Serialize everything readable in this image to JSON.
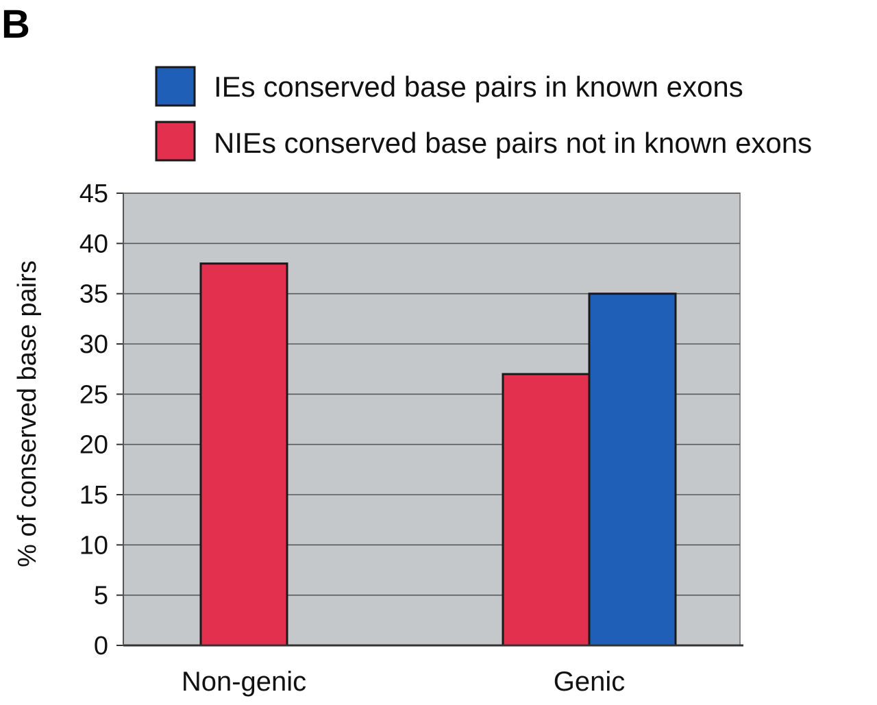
{
  "panel_label": "B",
  "colors": {
    "ies": "#1f5fb8",
    "nies": "#e3304e",
    "plot_background": "#c4c8ca",
    "gridline": "#5a5a5a"
  },
  "legend": {
    "position": "top",
    "items": [
      {
        "label": "IEs conserved base pairs in known exons",
        "color": "#1f5fb8"
      },
      {
        "label": "NIEs conserved base pairs not in known exons",
        "color": "#e3304e"
      }
    ]
  },
  "chart_data": {
    "type": "bar",
    "categories": [
      "Non-genic",
      "Genic"
    ],
    "series": [
      {
        "name": "NIEs conserved base pairs not in known exons",
        "color": "#e3304e",
        "values": [
          38,
          27
        ]
      },
      {
        "name": "IEs conserved base pairs in known exons",
        "color": "#1f5fb8",
        "values": [
          null,
          35
        ]
      }
    ],
    "xlabel": "",
    "ylabel": "% of conserved base pairs",
    "ylim": [
      0,
      45
    ],
    "yticks": [
      "0",
      "5",
      "10",
      "15",
      "20",
      "25",
      "30",
      "35",
      "40",
      "45"
    ],
    "grid": true,
    "legend_position": "top"
  }
}
